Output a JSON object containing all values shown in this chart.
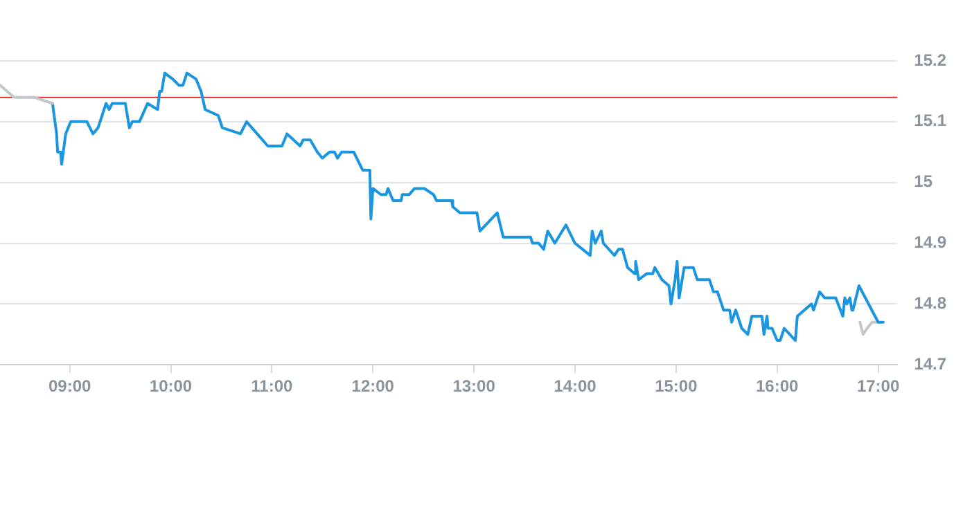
{
  "chart_data": {
    "type": "line",
    "marker": "none",
    "line_style": "solid",
    "grid": "y",
    "legend": false,
    "xlim": [
      8.31,
      17.19
    ],
    "ylim": [
      14.7,
      15.2
    ],
    "xticks": [
      {
        "value": 9,
        "label": "09:00"
      },
      {
        "value": 10,
        "label": "10:00"
      },
      {
        "value": 11,
        "label": "11:00"
      },
      {
        "value": 12,
        "label": "12:00"
      },
      {
        "value": 13,
        "label": "13:00"
      },
      {
        "value": 14,
        "label": "14:00"
      },
      {
        "value": 15,
        "label": "15:00"
      },
      {
        "value": 16,
        "label": "16:00"
      },
      {
        "value": 17,
        "label": "17:00"
      }
    ],
    "yticks": [
      14.7,
      14.8,
      14.9,
      {
        "value": 15,
        "label": "15"
      },
      15.1,
      15.2
    ],
    "ref_lines": [
      {
        "axis": "y",
        "value": 15.14,
        "color": "#d9302c"
      }
    ],
    "series": [
      {
        "color": "#c3c7cd",
        "x": [
          8.31,
          8.45,
          8.65,
          8.83
        ],
        "values": [
          15.16,
          15.14,
          15.14,
          15.13
        ]
      },
      {
        "color": "#1a95e0",
        "x": [
          8.83,
          8.87,
          8.88,
          8.91,
          8.92,
          8.96,
          9.01,
          9.17,
          9.23,
          9.28,
          9.36,
          9.39,
          9.42,
          9.55,
          9.59,
          9.62,
          9.69,
          9.77,
          9.87,
          9.89,
          9.91,
          9.94,
          10.02,
          10.08,
          10.12,
          10.16,
          10.25,
          10.3,
          10.34,
          10.47,
          10.51,
          10.69,
          10.75,
          10.96,
          11.1,
          11.15,
          11.28,
          11.31,
          11.38,
          11.45,
          11.5,
          11.57,
          11.62,
          11.65,
          11.69,
          11.81,
          11.9,
          11.97,
          11.98,
          12.0,
          12.08,
          12.13,
          12.15,
          12.2,
          12.28,
          12.29,
          12.36,
          12.41,
          12.51,
          12.6,
          12.63,
          12.78,
          12.79,
          12.86,
          13.03,
          13.06,
          13.23,
          13.29,
          13.56,
          13.58,
          13.64,
          13.69,
          13.73,
          13.8,
          13.91,
          14.0,
          14.15,
          14.17,
          14.2,
          14.26,
          14.28,
          14.39,
          14.43,
          14.47,
          14.52,
          14.59,
          14.6,
          14.63,
          14.71,
          14.77,
          14.79,
          14.86,
          14.93,
          14.95,
          14.99,
          15.01,
          15.03,
          15.08,
          15.17,
          15.21,
          15.33,
          15.37,
          15.41,
          15.47,
          15.53,
          15.55,
          15.59,
          15.65,
          15.71,
          15.75,
          15.85,
          15.87,
          15.9,
          15.91,
          15.95,
          16.0,
          16.03,
          16.07,
          16.18,
          16.2,
          16.34,
          16.36,
          16.42,
          16.47,
          16.58,
          16.65,
          16.67,
          16.69,
          16.72,
          16.74,
          16.75,
          16.81,
          17.0,
          17.05
        ],
        "values": [
          15.13,
          15.08,
          15.05,
          15.05,
          15.03,
          15.08,
          15.1,
          15.1,
          15.08,
          15.09,
          15.13,
          15.12,
          15.13,
          15.13,
          15.09,
          15.1,
          15.1,
          15.13,
          15.12,
          15.15,
          15.15,
          15.18,
          15.17,
          15.16,
          15.16,
          15.18,
          15.17,
          15.15,
          15.12,
          15.11,
          15.09,
          15.08,
          15.1,
          15.06,
          15.06,
          15.08,
          15.06,
          15.07,
          15.07,
          15.05,
          15.04,
          15.05,
          15.05,
          15.04,
          15.05,
          15.05,
          15.02,
          15.02,
          14.94,
          14.99,
          14.98,
          14.98,
          14.99,
          14.97,
          14.97,
          14.98,
          14.98,
          14.99,
          14.99,
          14.98,
          14.97,
          14.97,
          14.96,
          14.95,
          14.95,
          14.92,
          14.95,
          14.91,
          14.91,
          14.9,
          14.9,
          14.89,
          14.92,
          14.9,
          14.93,
          14.9,
          14.88,
          14.92,
          14.9,
          14.92,
          14.9,
          14.88,
          14.89,
          14.89,
          14.86,
          14.85,
          14.87,
          14.84,
          14.85,
          14.85,
          14.86,
          14.84,
          14.83,
          14.8,
          14.84,
          14.87,
          14.81,
          14.86,
          14.86,
          14.84,
          14.84,
          14.82,
          14.82,
          14.79,
          14.79,
          14.77,
          14.79,
          14.76,
          14.75,
          14.78,
          14.78,
          14.75,
          14.78,
          14.76,
          14.76,
          14.74,
          14.74,
          14.76,
          14.74,
          14.78,
          14.8,
          14.79,
          14.82,
          14.81,
          14.81,
          14.78,
          14.81,
          14.8,
          14.81,
          14.79,
          14.79,
          14.83,
          14.77,
          14.77
        ]
      },
      {
        "color": "#c3c7cd",
        "x": [
          16.82,
          16.85,
          16.89,
          16.94,
          17.01
        ],
        "values": [
          14.77,
          14.75,
          14.76,
          14.77,
          14.77
        ]
      }
    ]
  }
}
